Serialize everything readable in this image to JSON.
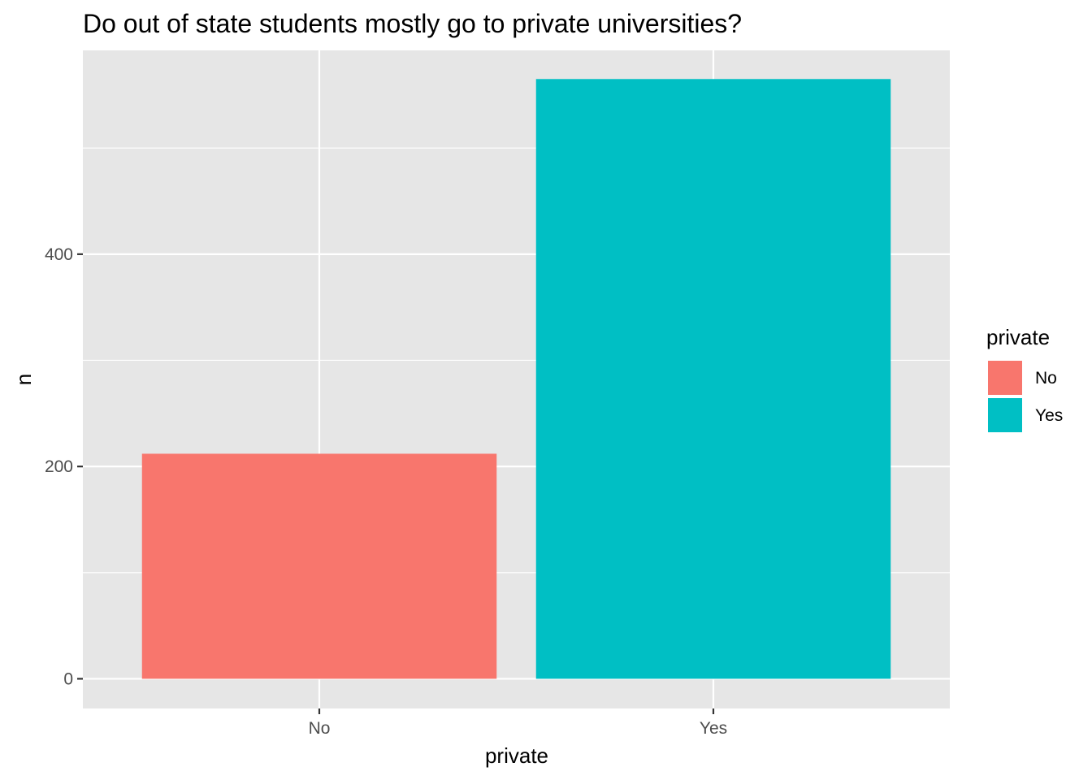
{
  "chart_data": {
    "type": "bar",
    "title": "Do out of state students mostly go to private universities?",
    "xlabel": "private",
    "ylabel": "n",
    "categories": [
      "No",
      "Yes"
    ],
    "values": [
      212,
      565
    ],
    "colors": [
      "#F8766D",
      "#00BFC4"
    ],
    "ylim": [
      -28,
      592
    ],
    "y_ticks": [
      0,
      200,
      400
    ],
    "y_tick_labels": [
      "0",
      "200",
      "400"
    ],
    "grid": true,
    "legend": {
      "title": "private",
      "placement": "right",
      "entries": [
        {
          "label": "No",
          "color": "#F8766D"
        },
        {
          "label": "Yes",
          "color": "#00BFC4"
        }
      ]
    }
  }
}
